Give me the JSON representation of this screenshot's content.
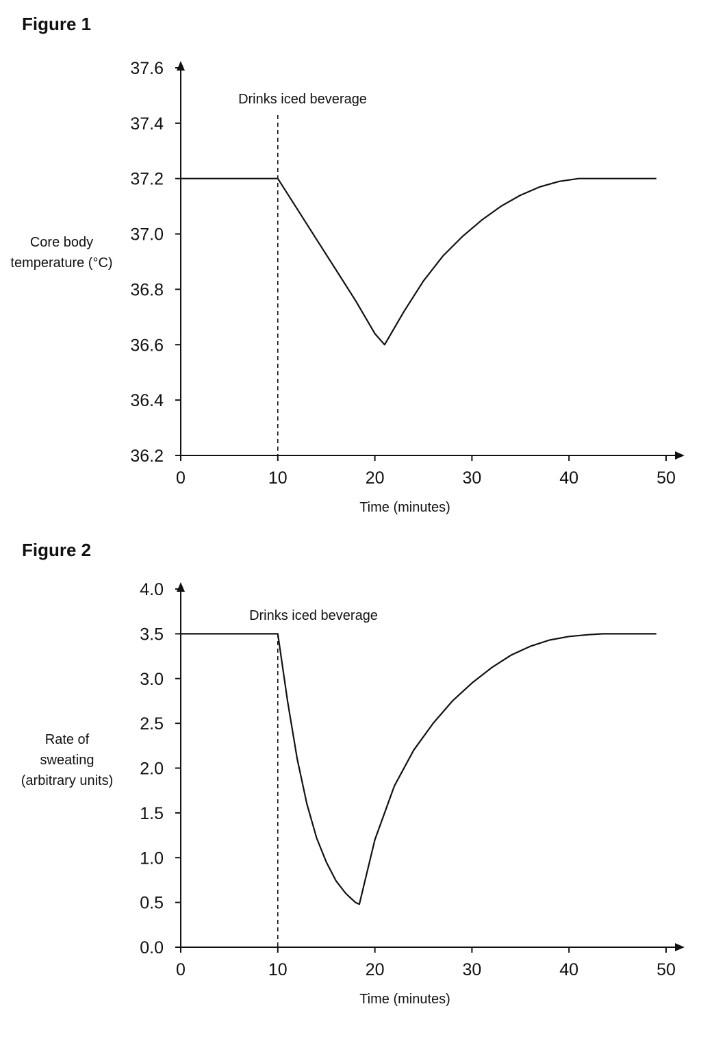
{
  "chart_data": [
    {
      "type": "line",
      "title": "Figure 1",
      "xlabel": "Time (minutes)",
      "ylabel": [
        "Core body",
        "temperature (°C)"
      ],
      "xlim": [
        0,
        50
      ],
      "ylim": [
        36.2,
        37.6
      ],
      "xticks": [
        "0",
        "10",
        "20",
        "30",
        "40",
        "50"
      ],
      "yticks": [
        "36.2",
        "36.4",
        "36.6",
        "36.8",
        "37.0",
        "37.2",
        "37.4",
        "37.6"
      ],
      "grid": false,
      "annotation": {
        "text": "Drinks iced beverage",
        "x": 10
      },
      "series": [
        {
          "x": [
            0,
            10,
            12,
            14,
            16,
            18,
            20,
            21,
            23,
            25,
            27,
            29,
            31,
            33,
            35,
            37,
            39,
            41,
            43,
            45,
            47,
            49
          ],
          "y": [
            37.2,
            37.2,
            37.09,
            36.98,
            36.87,
            36.76,
            36.64,
            36.6,
            36.72,
            36.83,
            36.92,
            36.99,
            37.05,
            37.1,
            37.14,
            37.17,
            37.19,
            37.2,
            37.2,
            37.2,
            37.2,
            37.2
          ]
        }
      ]
    },
    {
      "type": "line",
      "title": "Figure 2",
      "xlabel": "Time (minutes)",
      "ylabel": [
        "Rate of",
        "sweating",
        "(arbitrary units)"
      ],
      "xlim": [
        0,
        50
      ],
      "ylim": [
        0.0,
        4.0
      ],
      "xticks": [
        "0",
        "10",
        "20",
        "30",
        "40",
        "50"
      ],
      "yticks": [
        "0.0",
        "0.5",
        "1.0",
        "1.5",
        "2.0",
        "2.5",
        "3.0",
        "3.5",
        "4.0"
      ],
      "grid": false,
      "annotation": {
        "text": "Drinks iced beverage",
        "x": 10
      },
      "series": [
        {
          "x": [
            0,
            10,
            11,
            12,
            13,
            14,
            15,
            16,
            17,
            18,
            18.4,
            20,
            22,
            24,
            26,
            28,
            30,
            32,
            34,
            36,
            38,
            40,
            42,
            43.5,
            46,
            49
          ],
          "y": [
            3.5,
            3.5,
            2.75,
            2.1,
            1.6,
            1.22,
            0.95,
            0.74,
            0.6,
            0.5,
            0.48,
            1.2,
            1.8,
            2.2,
            2.5,
            2.75,
            2.95,
            3.12,
            3.26,
            3.36,
            3.43,
            3.47,
            3.49,
            3.5,
            3.5,
            3.5
          ]
        }
      ]
    }
  ]
}
